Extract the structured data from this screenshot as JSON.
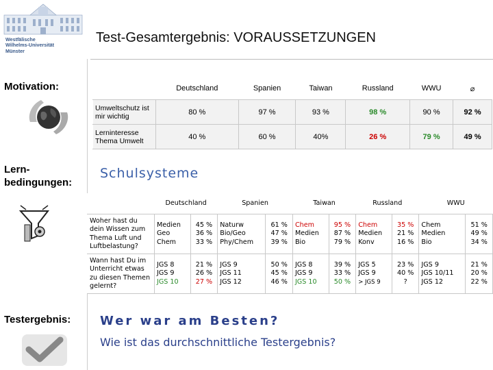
{
  "header": {
    "title": "Test-Gesamtergebnis: VORAUSSETZUNGEN",
    "logo_line1": "Westfälische",
    "logo_line2": "Wilhelms-Universität",
    "logo_line3": "Münster"
  },
  "labels": {
    "motivation": "Motivation:",
    "lern1": "Lern-",
    "lern2": "bedingungen:",
    "testergebnis": "Testergebnis:",
    "schulsysteme": "Schulsysteme"
  },
  "motivation_table": {
    "headers": [
      "Deutschland",
      "Spanien",
      "Taiwan",
      "Russland",
      "WWU",
      "⌀"
    ],
    "rows": [
      {
        "label": "Umweltschutz ist mir wichtig",
        "values": [
          "80 %",
          "97 %",
          "93 %",
          "98 %",
          "90 %",
          "92 %"
        ]
      },
      {
        "label": "Lerninteresse Thema Umwelt",
        "values": [
          "40 %",
          "60 %",
          "40%",
          "26 %",
          "79 %",
          "49 %"
        ]
      }
    ]
  },
  "lern_table": {
    "headers": [
      "Deutschland",
      "Spanien",
      "Taiwan",
      "Russland",
      "WWU"
    ],
    "row1": {
      "label": "Woher hast du dein Wissen zum Thema Luft und Luftbelastung?",
      "de_list": [
        "Medien",
        "Geo",
        "Chem"
      ],
      "de_pct": [
        "45 %",
        "36 %",
        "33 %"
      ],
      "es_list": [
        "Naturw",
        "Bio/Geo",
        "Phy/Chem"
      ],
      "es_pct": [
        "61 %",
        "47 %",
        "39 %"
      ],
      "tw_list": [
        "Chem",
        "Medien",
        "Bio"
      ],
      "tw_pct": [
        "95 %",
        "87 %",
        "79 %"
      ],
      "ru_list": [
        "Chem",
        "Medien",
        "Konv"
      ],
      "ru_pct": [
        "35 %",
        "21 %",
        "16 %"
      ],
      "wwu_list": [
        "Chem",
        "Medien",
        "Bio"
      ],
      "wwu_pct": [
        "51 %",
        "49 %",
        "34 %"
      ]
    },
    "row2": {
      "label": "Wann hast Du im Unterricht etwas zu diesen Themen gelernt?",
      "de_list": [
        "JGS 8",
        "JGS 9",
        "JGS 10"
      ],
      "de_pct": [
        "21 %",
        "26 %",
        "27 %"
      ],
      "es_list": [
        "JGS 9",
        "JGS 11",
        "JGS 12"
      ],
      "es_pct": [
        "50 %",
        "45 %",
        "46 %"
      ],
      "tw_list": [
        "JGS 8",
        "JGS 9",
        "JGS 10"
      ],
      "tw_pct": [
        "39 %",
        "33 %",
        "50 %"
      ],
      "ru_list": [
        "JGS 5",
        "JGS 9",
        "> JGS 9"
      ],
      "ru_pct": [
        "23 %",
        "40 %",
        "?"
      ],
      "wwu_list": [
        "JGS 9",
        "JGS 10/11",
        "JGS 12"
      ],
      "wwu_pct": [
        "21 %",
        "20 %",
        "22 %"
      ]
    }
  },
  "questions": {
    "q1": "Wer war am Besten?",
    "q2": "Wie ist das durchschnittliche Testergebnis?"
  },
  "colors": {
    "red": "#cc0000",
    "green": "#2a8a2a",
    "blue": "#2a3f8a"
  }
}
